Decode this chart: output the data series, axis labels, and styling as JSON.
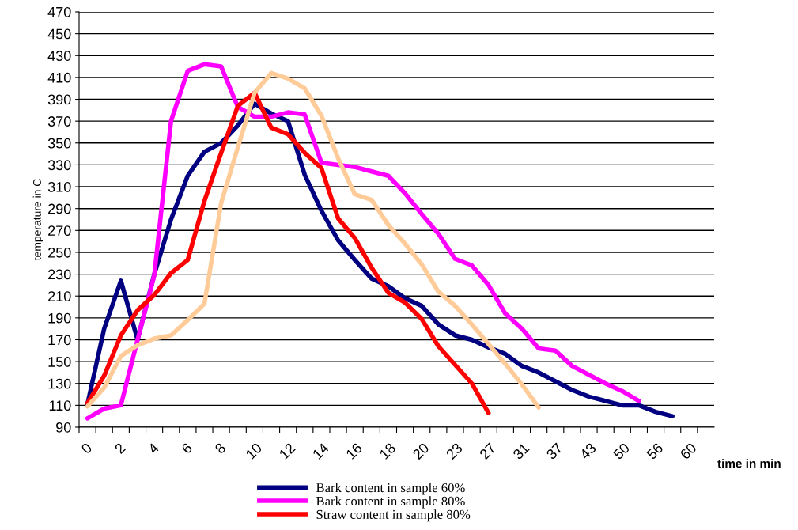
{
  "chart_data": {
    "type": "line",
    "xlabel": "time in min",
    "ylabel": "temperature in C",
    "categories": [
      "0",
      null,
      "2",
      null,
      "4",
      null,
      "6",
      null,
      "8",
      null,
      "10",
      null,
      "12",
      null,
      "14",
      null,
      "16",
      null,
      "18",
      null,
      "20",
      null,
      "23",
      null,
      "27",
      null,
      "31",
      null,
      "37",
      null,
      "43",
      null,
      "50",
      null,
      "56",
      null,
      "60",
      null
    ],
    "ylim": [
      90,
      470
    ],
    "yticks": [
      90,
      110,
      130,
      150,
      170,
      190,
      210,
      230,
      250,
      270,
      290,
      310,
      330,
      350,
      370,
      390,
      410,
      430,
      450,
      470
    ],
    "grid": "y",
    "legend": "bottom",
    "marker": "none",
    "line_style": "solid",
    "series": [
      {
        "name": "Bark content in sample 60%",
        "color": "#000080",
        "values": [
          111,
          180,
          224,
          170,
          230,
          280,
          320,
          342,
          350,
          366,
          386,
          377,
          370,
          321,
          288,
          261,
          243,
          226,
          219,
          208,
          201,
          184,
          174,
          170,
          163,
          157,
          146,
          140,
          132,
          124,
          118,
          114,
          110,
          110,
          104,
          100,
          null,
          null
        ]
      },
      {
        "name": "Bark content in sample 80%",
        "color": "#ff00ff",
        "values": [
          98,
          107,
          110,
          170,
          229,
          370,
          416,
          422,
          420,
          383,
          374,
          374,
          378,
          376,
          332,
          330,
          328,
          324,
          320,
          304,
          285,
          267,
          244,
          238,
          220,
          194,
          180,
          162,
          160,
          146,
          138,
          130,
          123,
          114,
          null,
          null,
          null,
          null
        ]
      },
      {
        "name": "Straw content in sample 80%",
        "color": "#ff0000",
        "values": [
          112,
          137,
          174,
          197,
          211,
          231,
          243,
          297,
          341,
          384,
          396,
          364,
          358,
          341,
          327,
          281,
          263,
          236,
          213,
          204,
          189,
          164,
          147,
          130,
          103,
          null,
          null,
          null,
          null,
          null,
          null,
          null,
          null,
          null,
          null,
          null,
          null,
          null
        ]
      },
      {
        "color": "#ffcc99",
        "values": [
          109,
          126,
          155,
          165,
          171,
          174,
          188,
          203,
          295,
          346,
          396,
          414,
          409,
          400,
          375,
          336,
          303,
          298,
          275,
          258,
          239,
          214,
          201,
          184,
          166,
          148,
          129,
          108,
          null,
          null,
          null,
          null,
          null,
          null,
          null,
          null,
          null,
          null
        ]
      }
    ]
  }
}
